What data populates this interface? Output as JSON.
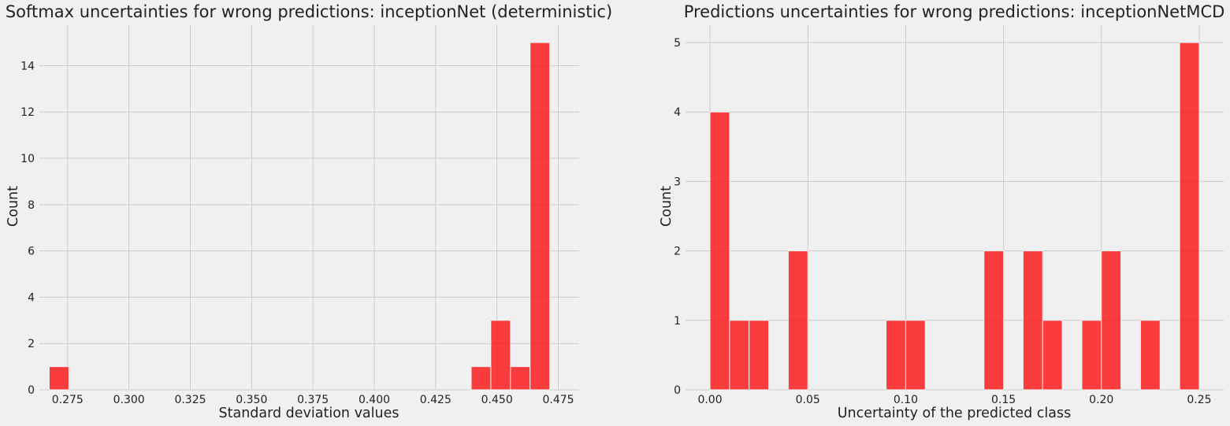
{
  "chart_data": [
    {
      "type": "bar",
      "title": "Softmax uncertainties for wrong predictions: inceptionNet (deterministic)",
      "xlabel": "Standard deviation values",
      "ylabel": "Count",
      "xlim": [
        0.2635,
        0.4835
      ],
      "ylim": [
        0,
        15.75
      ],
      "xticks": [
        "0.275",
        "0.300",
        "0.325",
        "0.350",
        "0.375",
        "0.400",
        "0.425",
        "0.450",
        "0.475"
      ],
      "xtick_values": [
        0.275,
        0.3,
        0.325,
        0.35,
        0.375,
        0.4,
        0.425,
        0.45,
        0.475
      ],
      "yticks": [
        "0",
        "2",
        "4",
        "6",
        "8",
        "10",
        "12",
        "14"
      ],
      "ytick_values": [
        0,
        2,
        4,
        6,
        8,
        10,
        12,
        14
      ],
      "grid": true,
      "color": "#ff0000",
      "bins": [
        {
          "x0": 0.2675,
          "x1": 0.2755,
          "count": 1
        },
        {
          "x0": 0.4395,
          "x1": 0.4475,
          "count": 1
        },
        {
          "x0": 0.4475,
          "x1": 0.4555,
          "count": 3
        },
        {
          "x0": 0.4555,
          "x1": 0.4635,
          "count": 1
        },
        {
          "x0": 0.4635,
          "x1": 0.4715,
          "count": 15
        }
      ]
    },
    {
      "type": "bar",
      "title": "Predictions uncertainties for wrong predictions: inceptionNetMCD",
      "xlabel": "Uncertainty of the predicted class",
      "ylabel": "Count",
      "xlim": [
        -0.0125,
        0.2625
      ],
      "ylim": [
        0,
        5.25
      ],
      "xticks": [
        "0.00",
        "0.05",
        "0.10",
        "0.15",
        "0.20",
        "0.25"
      ],
      "xtick_values": [
        0,
        0.05,
        0.1,
        0.15,
        0.2,
        0.25
      ],
      "yticks": [
        "0",
        "1",
        "2",
        "3",
        "4",
        "5"
      ],
      "ytick_values": [
        0,
        1,
        2,
        3,
        4,
        5
      ],
      "grid": true,
      "color": "#ff0000",
      "bins": [
        {
          "x0": 0.0,
          "x1": 0.01,
          "count": 4
        },
        {
          "x0": 0.01,
          "x1": 0.02,
          "count": 1
        },
        {
          "x0": 0.02,
          "x1": 0.03,
          "count": 1
        },
        {
          "x0": 0.04,
          "x1": 0.05,
          "count": 2
        },
        {
          "x0": 0.09,
          "x1": 0.1,
          "count": 1
        },
        {
          "x0": 0.1,
          "x1": 0.11,
          "count": 1
        },
        {
          "x0": 0.14,
          "x1": 0.15,
          "count": 2
        },
        {
          "x0": 0.16,
          "x1": 0.17,
          "count": 2
        },
        {
          "x0": 0.17,
          "x1": 0.18,
          "count": 1
        },
        {
          "x0": 0.19,
          "x1": 0.2,
          "count": 1
        },
        {
          "x0": 0.2,
          "x1": 0.21,
          "count": 2
        },
        {
          "x0": 0.22,
          "x1": 0.23,
          "count": 1
        },
        {
          "x0": 0.24,
          "x1": 0.25,
          "count": 5
        }
      ]
    }
  ]
}
